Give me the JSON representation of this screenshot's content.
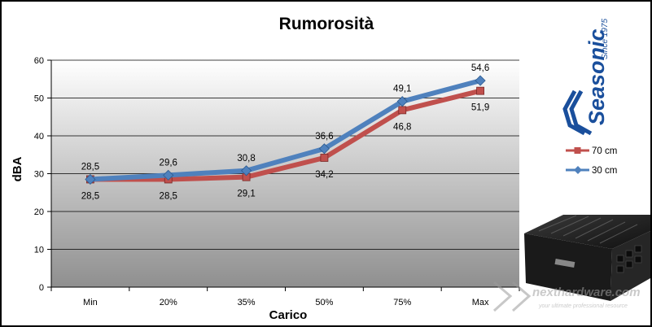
{
  "chart_data": {
    "type": "line",
    "title": "Rumorosità",
    "xlabel": "Carico",
    "ylabel": "dBA",
    "categories": [
      "Min",
      "20%",
      "35%",
      "50%",
      "75%",
      "Max"
    ],
    "ylim": [
      0,
      60
    ],
    "yticks": [
      0,
      10,
      20,
      30,
      40,
      50,
      60
    ],
    "grid": true,
    "legend_position": "right",
    "series": [
      {
        "name": "70 cm",
        "values": [
          28.5,
          28.5,
          29.1,
          34.2,
          46.8,
          51.9
        ],
        "labels": [
          "28,5",
          "28,5",
          "29,1",
          "34,2",
          "46,8",
          "51,9"
        ],
        "color": "#c0504d",
        "marker": "square"
      },
      {
        "name": "30 cm",
        "values": [
          28.5,
          29.6,
          30.8,
          36.6,
          49.1,
          54.6
        ],
        "labels": [
          "28,5",
          "29,6",
          "30,8",
          "36,6",
          "49,1",
          "54,6"
        ],
        "color": "#4f81bd",
        "marker": "diamond"
      }
    ]
  },
  "brand": {
    "logo_text": "Seasonic",
    "logo_tagline": "Since 1975",
    "logo_color": "#1a4f9c",
    "watermark": "nexthardware.com",
    "watermark_tagline": "your ultimate professional resource"
  }
}
